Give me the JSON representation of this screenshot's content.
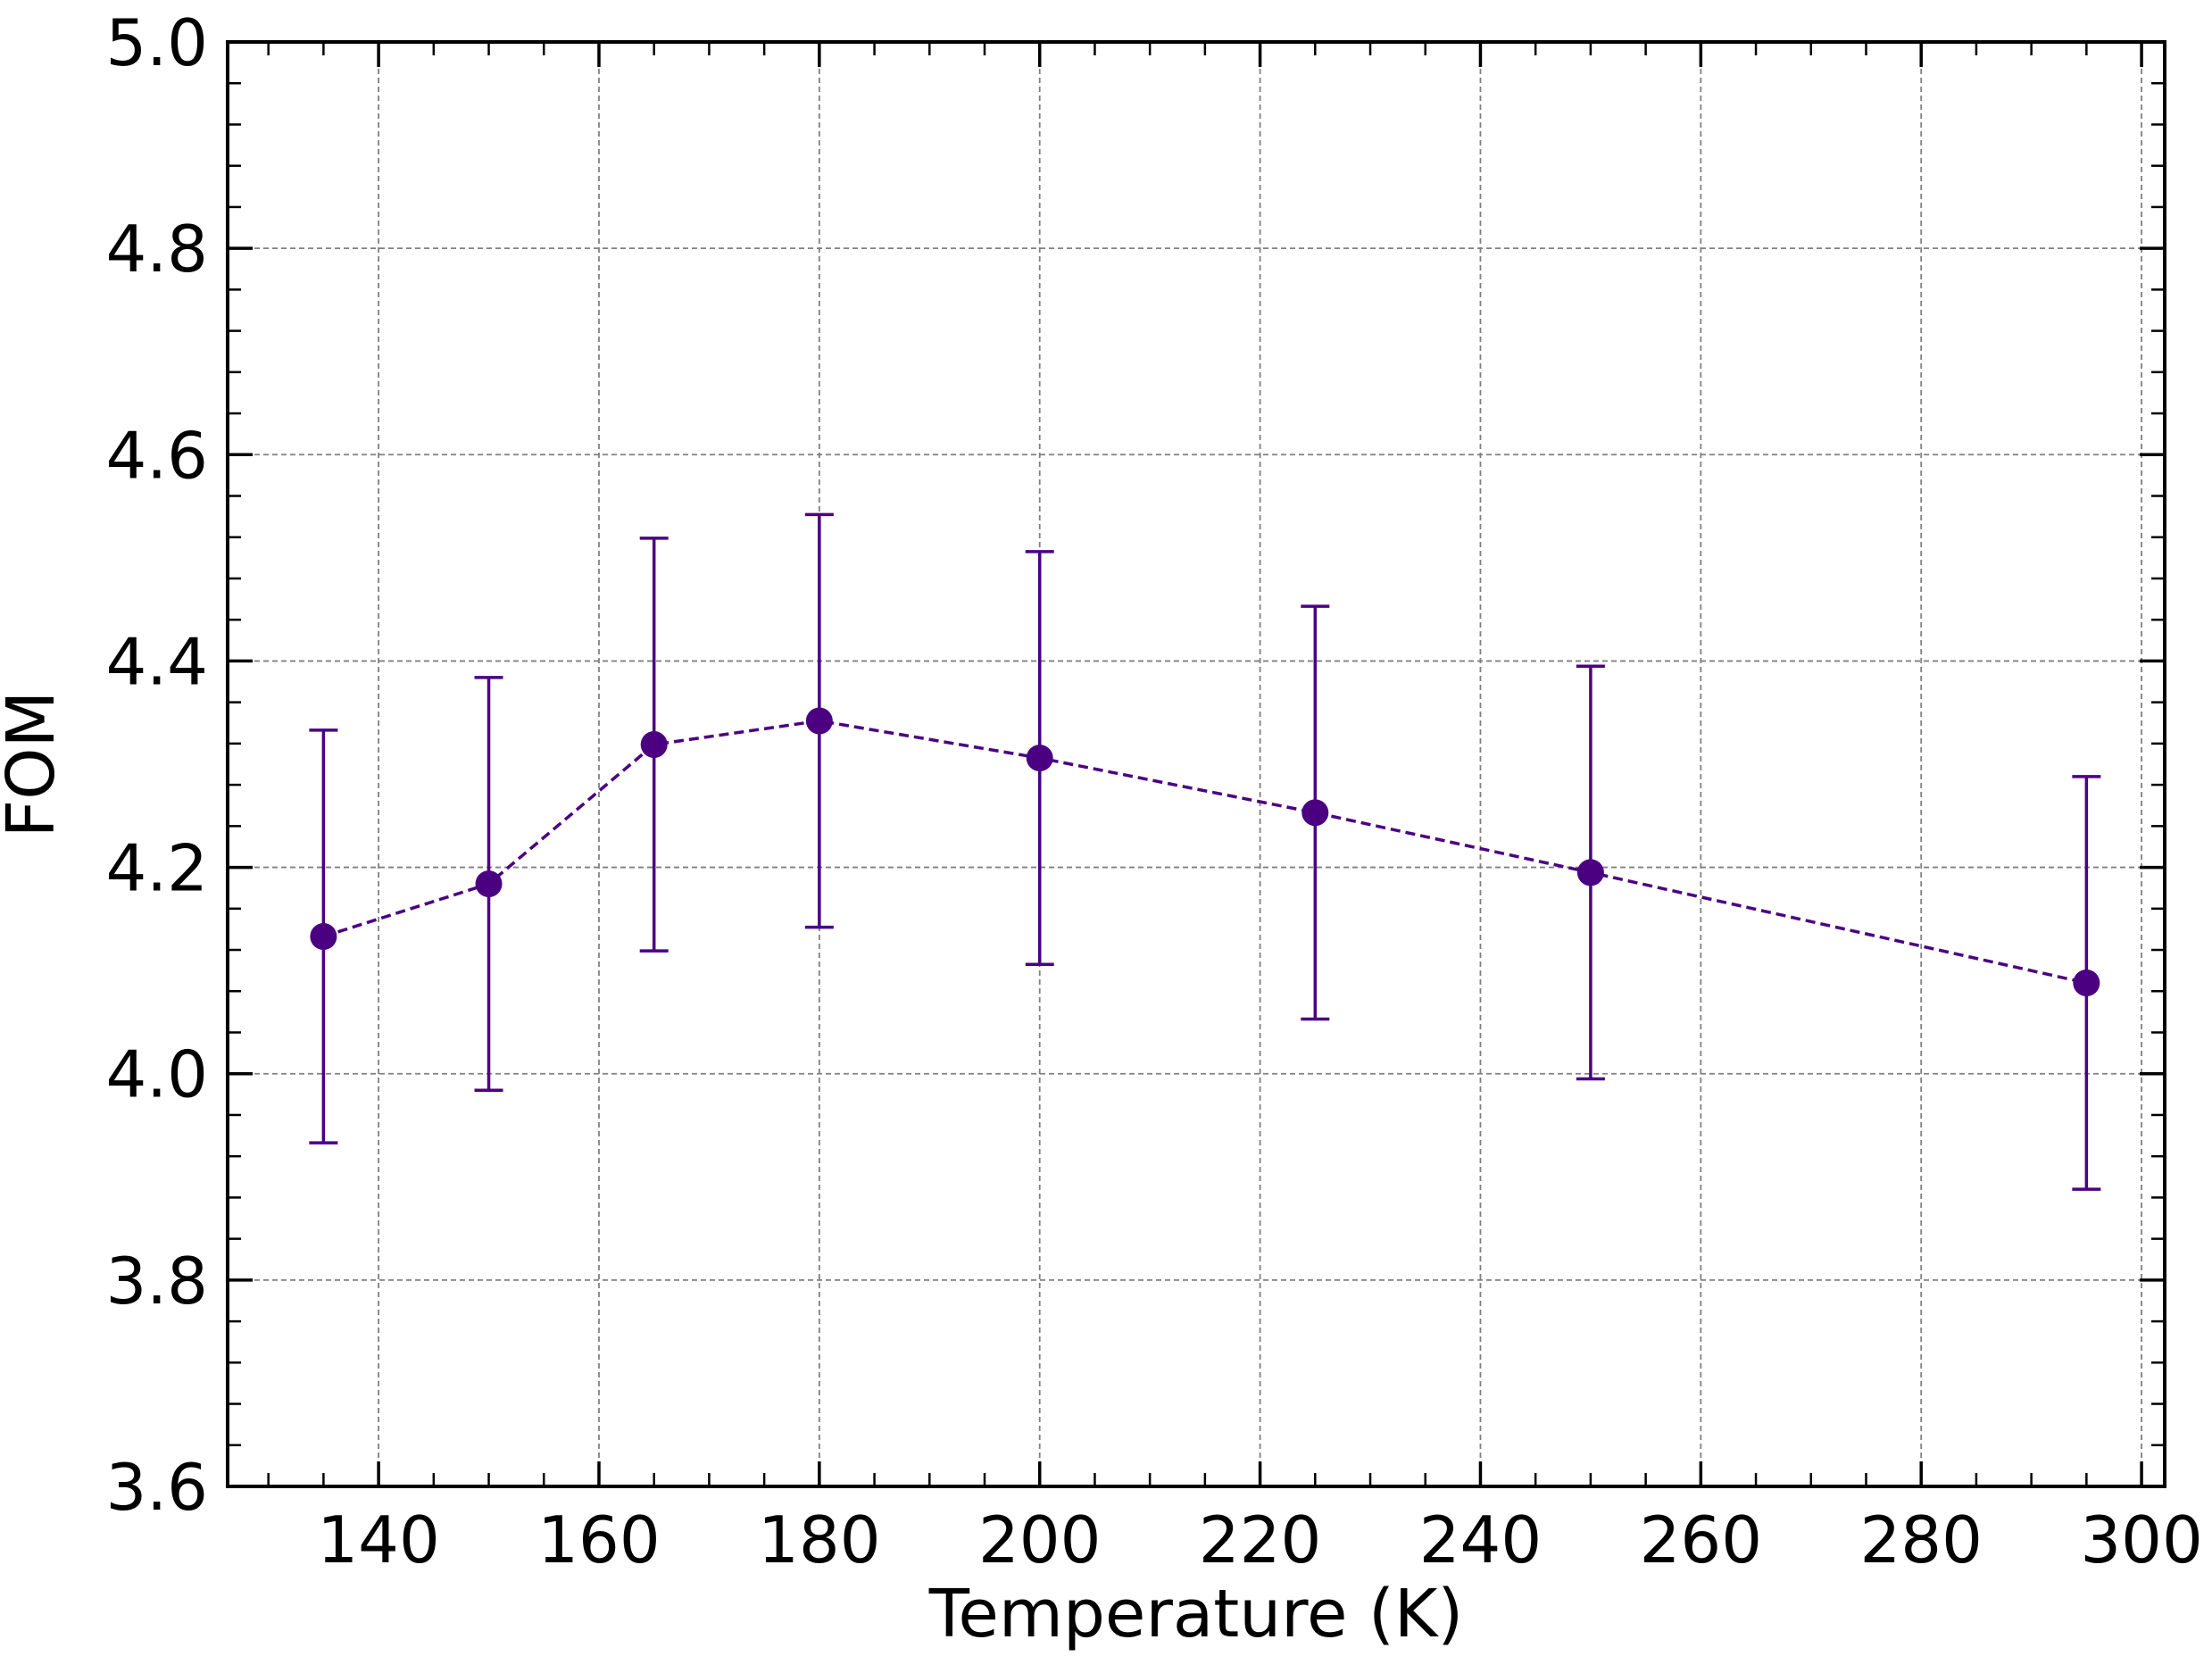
{
  "chart_data": {
    "type": "line",
    "title": "",
    "xlabel": "Temperature (K)",
    "ylabel": "FOM",
    "xlim": [
      126.3,
      302.1
    ],
    "ylim": [
      3.6,
      5.0
    ],
    "x_ticks": [
      140,
      160,
      180,
      200,
      220,
      240,
      260,
      280,
      300
    ],
    "y_ticks": [
      3.6,
      3.8,
      4.0,
      4.2,
      4.4,
      4.6,
      4.8,
      5.0
    ],
    "x_tick_labels": [
      "140",
      "160",
      "180",
      "200",
      "220",
      "240",
      "260",
      "280",
      "300"
    ],
    "y_tick_labels": [
      "3.6",
      "3.8",
      "4.0",
      "4.2",
      "4.4",
      "4.6",
      "4.8",
      "5.0"
    ],
    "grid": true,
    "line_style": "dashed",
    "marker": "circle",
    "color": "#4b0082",
    "series": [
      {
        "x": [
          135,
          150,
          165,
          180,
          200,
          225,
          250,
          295
        ],
        "y": [
          4.133,
          4.184,
          4.319,
          4.342,
          4.306,
          4.253,
          4.195,
          4.088
        ],
        "error": [
          0.2,
          0.2,
          0.2,
          0.2,
          0.2,
          0.2,
          0.2,
          0.2
        ]
      }
    ]
  }
}
